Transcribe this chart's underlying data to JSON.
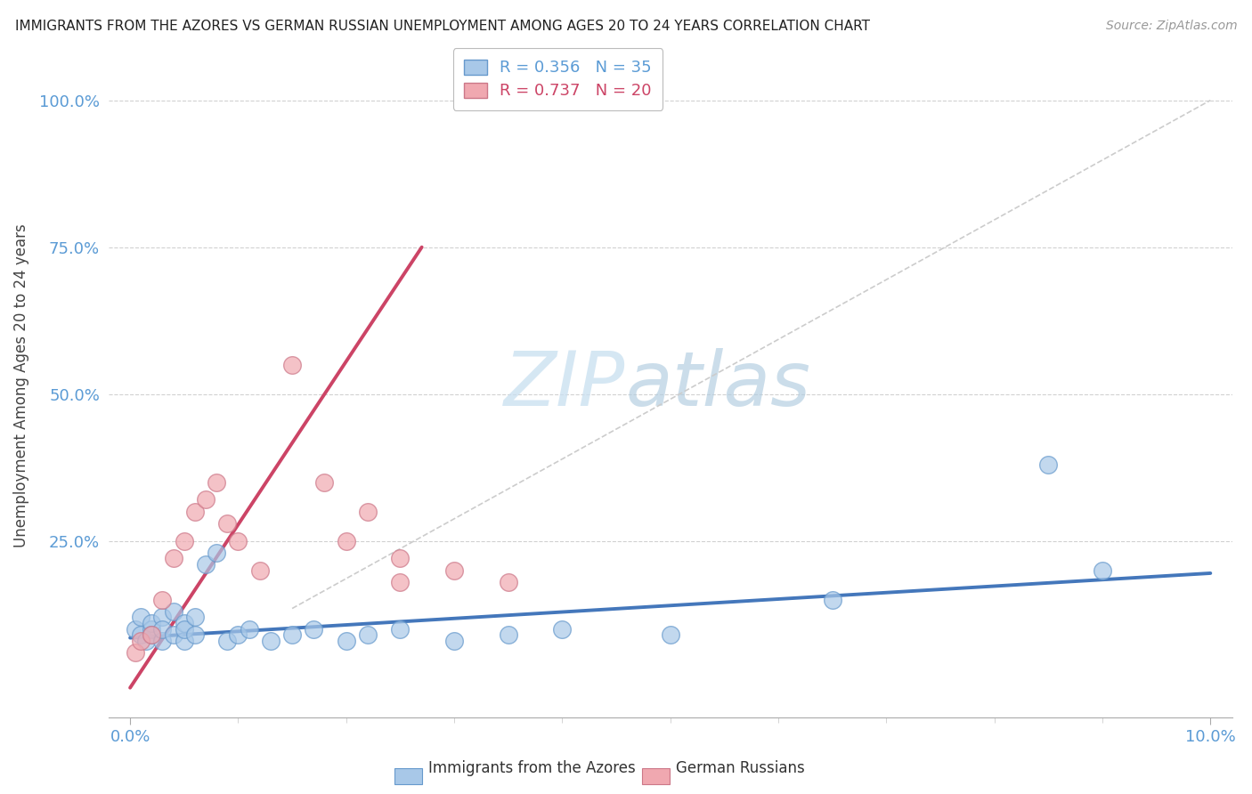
{
  "title": "IMMIGRANTS FROM THE AZORES VS GERMAN RUSSIAN UNEMPLOYMENT AMONG AGES 20 TO 24 YEARS CORRELATION CHART",
  "source": "Source: ZipAtlas.com",
  "ylabel": "Unemployment Among Ages 20 to 24 years",
  "blue_color": "#a8c8e8",
  "blue_edge_color": "#6699cc",
  "pink_color": "#f0a8b0",
  "pink_edge_color": "#cc7788",
  "blue_line_color": "#4477bb",
  "pink_line_color": "#cc4466",
  "dash_color": "#cccccc",
  "grid_color": "#cccccc",
  "azores_x": [
    0.0005,
    0.001,
    0.001,
    0.0015,
    0.002,
    0.002,
    0.002,
    0.003,
    0.003,
    0.003,
    0.004,
    0.004,
    0.005,
    0.005,
    0.005,
    0.006,
    0.006,
    0.007,
    0.008,
    0.009,
    0.01,
    0.011,
    0.013,
    0.015,
    0.017,
    0.02,
    0.022,
    0.025,
    0.03,
    0.035,
    0.04,
    0.05,
    0.065,
    0.085,
    0.09
  ],
  "azores_y": [
    0.1,
    0.09,
    0.12,
    0.08,
    0.1,
    0.11,
    0.09,
    0.12,
    0.08,
    0.1,
    0.13,
    0.09,
    0.11,
    0.08,
    0.1,
    0.09,
    0.12,
    0.21,
    0.23,
    0.08,
    0.09,
    0.1,
    0.08,
    0.09,
    0.1,
    0.08,
    0.09,
    0.1,
    0.08,
    0.09,
    0.1,
    0.09,
    0.15,
    0.38,
    0.2
  ],
  "german_x": [
    0.0005,
    0.001,
    0.002,
    0.003,
    0.004,
    0.005,
    0.006,
    0.007,
    0.008,
    0.009,
    0.01,
    0.012,
    0.015,
    0.018,
    0.02,
    0.022,
    0.025,
    0.025,
    0.03,
    0.035
  ],
  "german_y": [
    0.06,
    0.08,
    0.09,
    0.15,
    0.22,
    0.25,
    0.3,
    0.32,
    0.35,
    0.28,
    0.25,
    0.2,
    0.55,
    0.35,
    0.25,
    0.3,
    0.22,
    0.18,
    0.2,
    0.18
  ],
  "blue_line_x": [
    0.0,
    0.1
  ],
  "blue_line_y": [
    0.085,
    0.195
  ],
  "pink_line_x": [
    0.0,
    0.027
  ],
  "pink_line_y": [
    0.0,
    0.75
  ],
  "dash_line_x": [
    0.015,
    0.1
  ],
  "dash_line_y": [
    0.135,
    1.0
  ],
  "xlim": [
    -0.002,
    0.102
  ],
  "ylim": [
    -0.05,
    1.08
  ],
  "yticks": [
    0.0,
    0.25,
    0.5,
    0.75,
    1.0
  ],
  "ytick_labels": [
    "",
    "25.0%",
    "50.0%",
    "75.0%",
    "100.0%"
  ],
  "xticks": [
    0.0,
    0.1
  ],
  "xtick_labels": [
    "0.0%",
    "10.0%"
  ],
  "legend1_text": "R = 0.356   N = 35",
  "legend2_text": "R = 0.737   N = 20",
  "legend1_color": "#5b9bd5",
  "legend2_color": "#cc4466",
  "watermark_zip": "ZIP",
  "watermark_atlas": "atlas",
  "tick_color": "#5b9bd5"
}
